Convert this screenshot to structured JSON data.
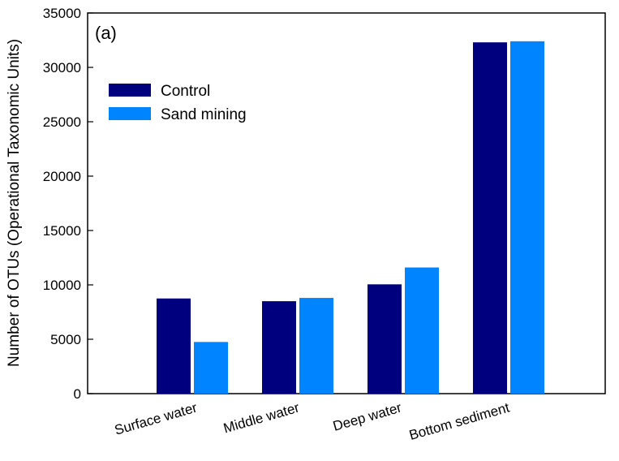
{
  "chart_data": {
    "type": "bar",
    "panel_label": "(a)",
    "ylabel": "Number of OTUs (Operational Taxonomic Units)",
    "xlabel": "",
    "ylim": [
      0,
      35000
    ],
    "yticks": [
      0,
      5000,
      10000,
      15000,
      20000,
      25000,
      30000,
      35000
    ],
    "categories": [
      "Surface water",
      "Middle water",
      "Deep water",
      "Bottom sediment"
    ],
    "series": [
      {
        "name": "Control",
        "color": "#00007f",
        "values": [
          8750,
          8500,
          10050,
          32300
        ]
      },
      {
        "name": "Sand mining",
        "color": "#0084ff",
        "values": [
          4750,
          8800,
          11600,
          32400
        ]
      }
    ],
    "legend": {
      "placement": "top-left"
    },
    "grid": false
  }
}
